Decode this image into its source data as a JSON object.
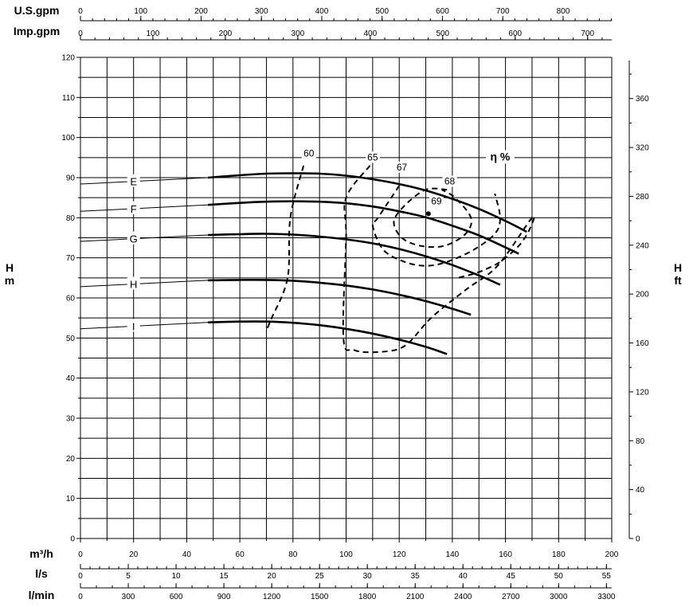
{
  "chart_data": {
    "type": "line",
    "grid": true,
    "axes": {
      "x_m3h": {
        "label": "m³/h",
        "min": 0,
        "max": 200,
        "ticks": [
          0,
          20,
          40,
          60,
          80,
          100,
          120,
          140,
          160,
          180,
          200
        ]
      },
      "x_ls": {
        "label": "l/s",
        "min": 0,
        "max": 55.56,
        "ticks": [
          0,
          5,
          10,
          15,
          20,
          25,
          30,
          35,
          40,
          45,
          50,
          55
        ]
      },
      "x_lmin": {
        "label": "l/min",
        "min": 0,
        "max": 3333.3,
        "ticks": [
          0,
          300,
          600,
          900,
          1200,
          1500,
          1800,
          2100,
          2400,
          2700,
          3000,
          3300
        ]
      },
      "x_usgpm": {
        "label": "U.S.gpm",
        "min": 0,
        "max": 880.6,
        "ticks": [
          0,
          100,
          200,
          300,
          400,
          500,
          600,
          700,
          800
        ]
      },
      "x_impgpm": {
        "label": "Imp.gpm",
        "min": 0,
        "max": 733.3,
        "ticks": [
          0,
          100,
          200,
          300,
          400,
          500,
          600,
          700
        ]
      },
      "y_m": {
        "label_top": "H",
        "label_bottom": "m",
        "min": 0,
        "max": 120,
        "ticks": [
          0,
          10,
          20,
          30,
          40,
          50,
          60,
          70,
          80,
          90,
          100,
          110,
          120
        ]
      },
      "y_ft": {
        "label_top": "H",
        "label_bottom": "ft",
        "min": 0,
        "max": 393.7,
        "ticks": [
          0,
          40,
          80,
          120,
          160,
          200,
          240,
          280,
          320,
          360
        ]
      }
    },
    "series": [
      {
        "name": "E",
        "x": [
          48,
          60,
          70,
          80,
          90,
          100,
          110,
          120,
          130,
          140,
          150,
          160,
          168
        ],
        "y": [
          90,
          90.6,
          91,
          91.1,
          91,
          90.5,
          89.6,
          88.4,
          86.8,
          84.7,
          82.2,
          79.2,
          76.5
        ]
      },
      {
        "name": "F",
        "x": [
          48,
          60,
          70,
          80,
          90,
          100,
          110,
          120,
          130,
          140,
          150,
          160,
          165
        ],
        "y": [
          83.2,
          83.7,
          84,
          84.1,
          84,
          83.6,
          82.8,
          81.6,
          80.1,
          78,
          75.6,
          72.6,
          71
        ]
      },
      {
        "name": "G",
        "x": [
          48,
          60,
          70,
          80,
          90,
          100,
          110,
          120,
          130,
          140,
          150,
          158
        ],
        "y": [
          75.7,
          75.9,
          76,
          75.8,
          75.3,
          74.6,
          73.6,
          72.2,
          70.4,
          68.2,
          65.6,
          63.3
        ]
      },
      {
        "name": "H",
        "x": [
          48,
          60,
          70,
          80,
          90,
          100,
          110,
          120,
          130,
          140,
          147
        ],
        "y": [
          64.4,
          64.5,
          64.5,
          64.3,
          63.8,
          63.1,
          62.1,
          60.8,
          59.2,
          57.3,
          55.8
        ]
      },
      {
        "name": "I",
        "x": [
          48,
          60,
          70,
          80,
          90,
          100,
          110,
          120,
          130,
          138
        ],
        "y": [
          53.9,
          54.1,
          54.1,
          53.8,
          53.2,
          52.3,
          51.1,
          49.6,
          47.8,
          46
        ]
      }
    ],
    "curve_labels": [
      "E",
      "F",
      "G",
      "H",
      "I"
    ],
    "efficiency": {
      "title": "η %",
      "contours": [
        {
          "label": "60",
          "x": [
            84,
            79,
            78,
            72,
            70
          ],
          "y": [
            93,
            80,
            65,
            55,
            52
          ]
        },
        {
          "label": "65",
          "x": [
            109,
            100,
            100,
            99,
            103,
            112,
            122,
            132,
            145,
            157,
            170,
            169,
            165,
            158,
            152,
            148,
            142
          ],
          "y": [
            93,
            85,
            75,
            50,
            47,
            46.5,
            48,
            55,
            62,
            68,
            80,
            77,
            73,
            69,
            67,
            66,
            65
          ]
        },
        {
          "label": "67",
          "x": [
            120,
            112,
            110,
            114,
            122,
            130,
            138,
            148,
            156,
            158,
            156
          ],
          "y": [
            88,
            80,
            78,
            72,
            69,
            68,
            69,
            72,
            76,
            80,
            86
          ]
        },
        {
          "label": "68",
          "x": [
            138,
            130,
            122,
            118,
            121,
            128,
            137,
            145,
            147,
            141,
            136
          ],
          "y": [
            87,
            87,
            83,
            79,
            75,
            73,
            73,
            76,
            80,
            85,
            87
          ]
        }
      ],
      "labels": [
        "60",
        "65",
        "67",
        "68",
        "69"
      ],
      "bep": {
        "label": "69",
        "x": 131,
        "y": 81
      }
    }
  }
}
